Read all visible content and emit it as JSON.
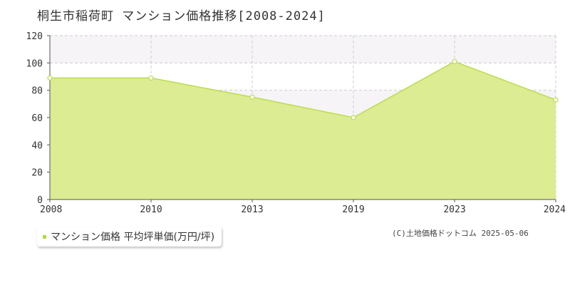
{
  "title": "桐生市稲荷町 マンション価格推移[2008-2024]",
  "colors": {
    "area_fill": "#dcec92",
    "line": "#b9dd4f",
    "marker_fill": "#ffffff",
    "grid": "#cccccc",
    "axis": "#555555",
    "band": "#f6f4f7",
    "legend_marker": "#aedc3b"
  },
  "legend": {
    "label": "マンション価格 平均坪単価(万円/坪)"
  },
  "credit": "(C)土地価格ドットコム 2025-05-06",
  "chart_data": {
    "type": "area",
    "x": [
      2008,
      2010,
      2013,
      2019,
      2023,
      2024
    ],
    "series": [
      {
        "name": "マンション価格 平均坪単価(万円/坪)",
        "values": [
          89,
          89,
          75,
          60,
          101,
          73
        ]
      }
    ],
    "xlim": [
      2008,
      2024
    ],
    "ylim": [
      0,
      120
    ],
    "yticks": [
      0,
      20,
      40,
      60,
      80,
      100,
      120
    ],
    "xticks": [
      2008,
      2010,
      2013,
      2019,
      2023,
      2024
    ],
    "x_scale": "categorical-evenly-spaced",
    "grid": true,
    "legend_position": "bottom-left"
  }
}
